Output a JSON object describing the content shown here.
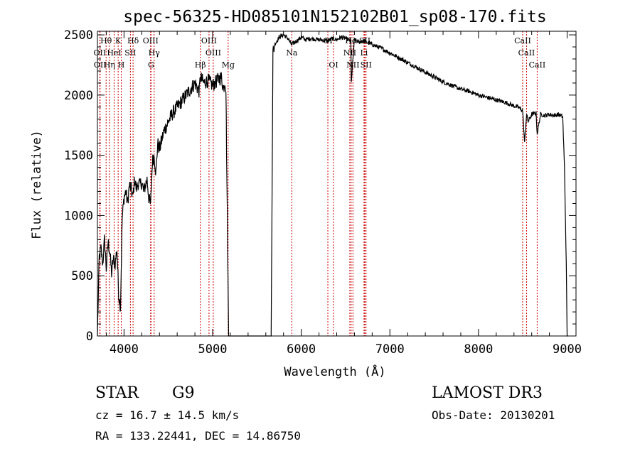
{
  "chart_data": {
    "type": "line",
    "title": "spec-56325-HD085101N152102B01_sp08-170.fits",
    "xlabel": "Wavelength (Å)",
    "ylabel": "Flux (relative)",
    "xlim": [
      3700,
      9100
    ],
    "ylim": [
      0,
      2530
    ],
    "x_ticks": [
      4000,
      5000,
      6000,
      7000,
      8000,
      9000
    ],
    "y_ticks": [
      0,
      500,
      1000,
      1500,
      2000,
      2500
    ],
    "grid": false,
    "series": [
      {
        "x": [
          3700,
          3720,
          3740,
          3760,
          3780,
          3800,
          3820,
          3840,
          3860,
          3880,
          3900,
          3920,
          3940,
          3960,
          3980,
          4000,
          4020,
          4040,
          4060,
          4080,
          4100,
          4120,
          4140,
          4160,
          4180,
          4200,
          4220,
          4240,
          4260,
          4280,
          4300,
          4320,
          4340,
          4360,
          4380,
          4400,
          4450,
          4500,
          4550,
          4600,
          4650,
          4700,
          4750,
          4800,
          4850,
          4860,
          4900,
          4950,
          5000,
          5050,
          5100,
          5120,
          5140,
          5150,
          5180,
          5250,
          5400,
          5600,
          5660,
          5680,
          5700,
          5750,
          5800,
          5850,
          5890,
          5950,
          6000,
          6050,
          6100,
          6200,
          6300,
          6350,
          6400,
          6450,
          6500,
          6560,
          6564,
          6600,
          6650,
          6700,
          6800,
          6900,
          7000,
          7100,
          7200,
          7300,
          7400,
          7500,
          7600,
          7700,
          7800,
          7900,
          8000,
          8100,
          8200,
          8300,
          8400,
          8450,
          8498,
          8520,
          8542,
          8560,
          8600,
          8650,
          8662,
          8700,
          8750,
          8800,
          8850,
          8900,
          8950,
          8970,
          8990,
          9000,
          9010
        ],
        "y": [
          0,
          650,
          720,
          600,
          800,
          560,
          780,
          700,
          520,
          640,
          600,
          720,
          350,
          240,
          980,
          1150,
          1200,
          1100,
          1250,
          1220,
          1150,
          1300,
          1220,
          1270,
          1250,
          1280,
          1200,
          1250,
          1300,
          1150,
          1080,
          1450,
          1500,
          1350,
          1600,
          1550,
          1700,
          1780,
          1850,
          1900,
          1950,
          2000,
          2050,
          2100,
          2030,
          2150,
          2100,
          2120,
          2080,
          2120,
          2150,
          2050,
          2120,
          2050,
          0,
          0,
          0,
          0,
          0,
          2350,
          2420,
          2480,
          2500,
          2470,
          2420,
          2450,
          2480,
          2460,
          2470,
          2460,
          2450,
          2470,
          2460,
          2480,
          2470,
          2450,
          2100,
          2460,
          2440,
          2450,
          2420,
          2390,
          2350,
          2310,
          2270,
          2230,
          2190,
          2150,
          2110,
          2080,
          2050,
          2030,
          2000,
          1980,
          1960,
          1940,
          1910,
          1900,
          1870,
          1600,
          1840,
          1780,
          1840,
          1850,
          1680,
          1840,
          1830,
          1840,
          1830,
          1840,
          1820,
          1400,
          600,
          0,
          0
        ]
      }
    ],
    "annotations": [
      {
        "label": "Hθ",
        "x": 3798,
        "row": 0
      },
      {
        "label": "OII",
        "x": 3727,
        "row": 1
      },
      {
        "label": "OII",
        "x": 3730,
        "row": 2
      },
      {
        "label": "Hη",
        "x": 3835,
        "row": 2
      },
      {
        "label": "HeI",
        "x": 3889,
        "row": 1
      },
      {
        "label": "K",
        "x": 3934,
        "row": 0
      },
      {
        "label": "H",
        "x": 3969,
        "row": 2
      },
      {
        "label": "SII",
        "x": 4072,
        "row": 1
      },
      {
        "label": "Hδ",
        "x": 4102,
        "row": 0
      },
      {
        "label": "OIII",
        "x": 4300,
        "row": 0
      },
      {
        "label": "Hγ",
        "x": 4340,
        "row": 1
      },
      {
        "label": "G",
        "x": 4305,
        "row": 2
      },
      {
        "label": "Hβ",
        "x": 4861,
        "row": 2
      },
      {
        "label": "OIII",
        "x": 4959,
        "row": 0
      },
      {
        "label": "OIII",
        "x": 5007,
        "row": 1
      },
      {
        "label": "Mg",
        "x": 5175,
        "row": 2
      },
      {
        "label": "Na",
        "x": 5893,
        "row": 1
      },
      {
        "label": "OI",
        "x": 6300,
        "row": 0
      },
      {
        "label": "OI",
        "x": 6364,
        "row": 2
      },
      {
        "label": "NII",
        "x": 6548,
        "row": 1
      },
      {
        "label": "NII",
        "x": 6583,
        "row": 2
      },
      {
        "label": "Hα",
        "x": 6563,
        "row": 0
      },
      {
        "label": "Li",
        "x": 6708,
        "row": 1
      },
      {
        "label": "SII",
        "x": 6717,
        "row": 0
      },
      {
        "label": "SII",
        "x": 6731,
        "row": 2
      },
      {
        "label": "CaII",
        "x": 8498,
        "row": 0
      },
      {
        "label": "CaII",
        "x": 8542,
        "row": 1
      },
      {
        "label": "CaII",
        "x": 8662,
        "row": 2
      }
    ],
    "line_colors": {
      "spectrum": "#000000",
      "markers": "#cc0000"
    }
  },
  "info": {
    "object_class": "STAR",
    "subclass": "G9",
    "survey": "LAMOST DR3",
    "velocity": "cz = 16.7 ± 14.5 km/s",
    "obs_date": "Obs-Date: 20130201",
    "coords": "RA = 133.22441, DEC =  14.86750"
  }
}
